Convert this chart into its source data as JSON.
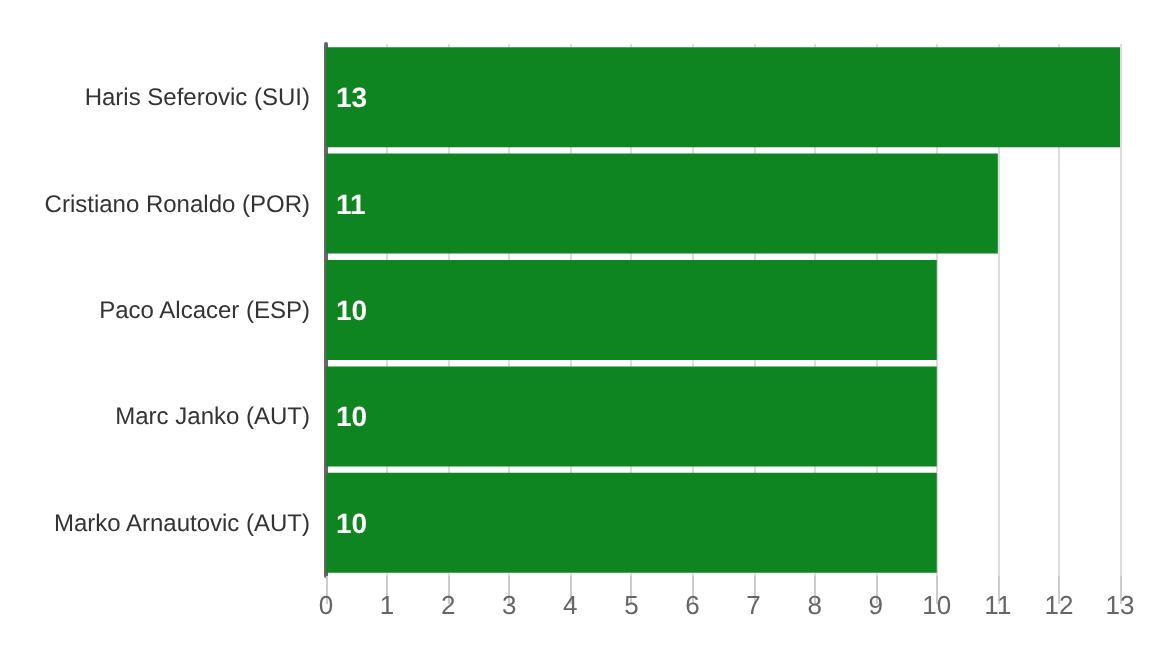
{
  "chart_data": {
    "type": "bar",
    "orientation": "horizontal",
    "categories": [
      "Haris Seferovic (SUI)",
      "Cristiano Ronaldo (POR)",
      "Paco Alcacer (ESP)",
      "Marc Janko (AUT)",
      "Marko Arnautovic (AUT)"
    ],
    "values": [
      13,
      11,
      10,
      10,
      10
    ],
    "color": "#0e8520",
    "xlim": [
      0,
      13
    ],
    "xticks": [
      0,
      1,
      2,
      3,
      4,
      5,
      6,
      7,
      8,
      9,
      10,
      11,
      12,
      13
    ],
    "grid": "x",
    "data_labels": true
  }
}
